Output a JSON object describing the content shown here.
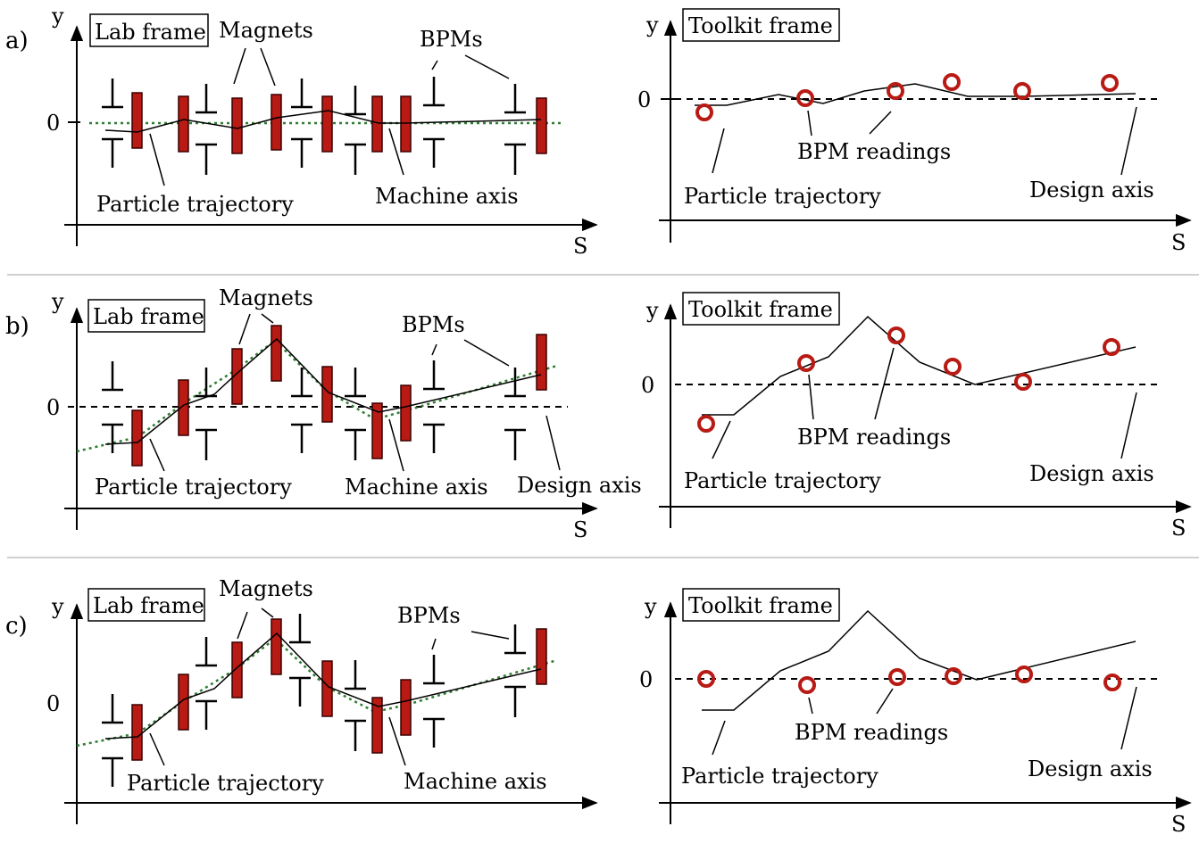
{
  "labels": {
    "lab_frame": "Lab frame",
    "toolkit_frame": "Toolkit frame",
    "magnets": "Magnets",
    "bpms": "BPMs",
    "particle_trajectory": "Particle trajectory",
    "machine_axis": "Machine axis",
    "design_axis": "Design axis",
    "bpm_readings": "BPM readings",
    "y": "y",
    "s": "S",
    "zero": "0"
  },
  "panels": [
    {
      "letter": "a)",
      "shows_design_axis_label_left": false
    },
    {
      "letter": "b)",
      "shows_design_axis_label_left": true
    },
    {
      "letter": "c)",
      "shows_design_axis_label_left": false
    }
  ],
  "colors": {
    "magnet_fill": "#b81a14",
    "magnet_stroke": "#3a0000",
    "bpm_marker": "#b81a14",
    "machine_axis": "#2e7d32",
    "divider": "#d0d0d0"
  }
}
